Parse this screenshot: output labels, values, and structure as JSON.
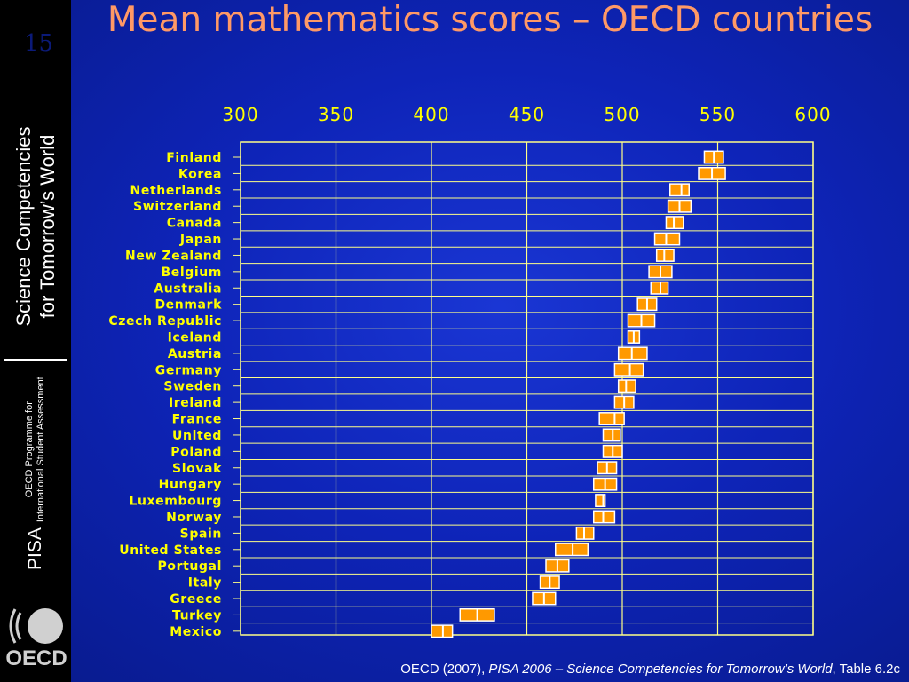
{
  "slide_number": "15",
  "sidebar": {
    "title_line1": "Science Competencies",
    "title_line2": "for Tomorrow’s World",
    "pisa": "PISA",
    "programme_line1": "OECD Programme for",
    "programme_line2": "International Student Assessment",
    "logo_text": "OECD"
  },
  "title": "Mean mathematics scores – OECD countries",
  "source": {
    "prefix": "OECD (2007), ",
    "italic": "PISA 2006 – Science Competencies for Tomorrow’s World",
    "suffix": ", Table 6.2c"
  },
  "colors": {
    "bar_fill": "#ff9900",
    "bar_border": "#ffffff",
    "grid": "#ffff88",
    "label": "#ffff00",
    "title": "#ff9966"
  },
  "chart_data": {
    "type": "bar",
    "orientation": "horizontal",
    "xlim": [
      300,
      600
    ],
    "x_ticks": [
      "300",
      "350",
      "400",
      "450",
      "500",
      "550",
      "600"
    ],
    "categories": [
      "Finland",
      "Korea",
      "Netherlands",
      "Switzerland",
      "Canada",
      "Japan",
      "New Zealand",
      "Belgium",
      "Australia",
      "Denmark",
      "Czech Republic",
      "Iceland",
      "Austria",
      "Germany",
      "Sweden",
      "Ireland",
      "France",
      "United",
      "Poland",
      "Slovak",
      "Hungary",
      "Luxembourg",
      "Norway",
      "Spain",
      "United States",
      "Portugal",
      "Italy",
      "Greece",
      "Turkey",
      "Mexico"
    ],
    "low": [
      543,
      540,
      525,
      524,
      523,
      517,
      518,
      514,
      515,
      508,
      503,
      503,
      498,
      496,
      498,
      496,
      488,
      490,
      490,
      487,
      485,
      486,
      485,
      476,
      465,
      460,
      457,
      453,
      415,
      400
    ],
    "mean": [
      548,
      547,
      531,
      530,
      527,
      523,
      522,
      520,
      520,
      513,
      510,
      506,
      505,
      504,
      502,
      501,
      496,
      495,
      495,
      492,
      491,
      490,
      490,
      480,
      474,
      466,
      462,
      459,
      424,
      406
    ],
    "high": [
      553,
      554,
      535,
      536,
      532,
      530,
      527,
      526,
      524,
      518,
      517,
      509,
      513,
      511,
      507,
      506,
      501,
      499,
      500,
      497,
      497,
      491,
      496,
      485,
      482,
      472,
      467,
      465,
      433,
      411
    ]
  }
}
